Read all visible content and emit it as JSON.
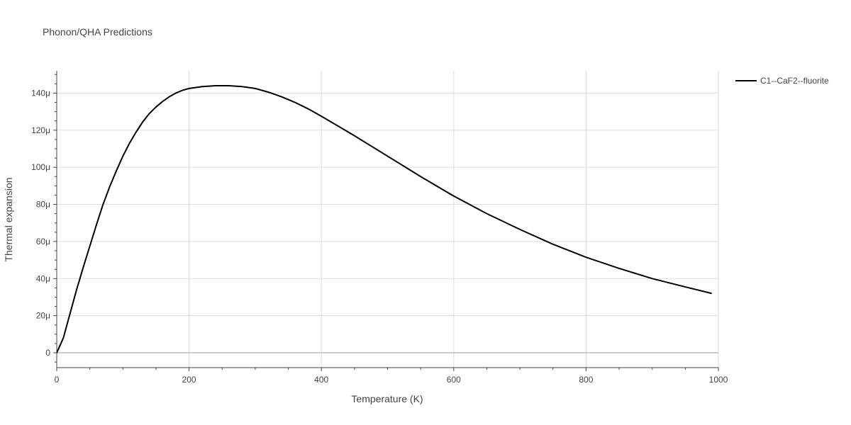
{
  "chart_data": {
    "type": "line",
    "title": "Phonon/QHA Predictions",
    "xlabel": "Temperature (K)",
    "ylabel": "Thermal expansion",
    "xlim": [
      0,
      1000
    ],
    "ylim": [
      -8,
      152
    ],
    "x_ticks": [
      0,
      200,
      400,
      600,
      800,
      1000
    ],
    "x_tick_labels": [
      "0",
      "200",
      "400",
      "600",
      "800",
      "1000"
    ],
    "y_ticks": [
      0,
      20,
      40,
      60,
      80,
      100,
      120,
      140
    ],
    "y_tick_labels": [
      "0",
      "20μ",
      "40μ",
      "60μ",
      "80μ",
      "100μ",
      "120μ",
      "140μ"
    ],
    "grid": true,
    "legend_position": "top-right",
    "series": [
      {
        "name": "C1--CaF2--fluorite",
        "color": "#000000",
        "x": [
          0,
          10,
          20,
          30,
          40,
          50,
          60,
          70,
          80,
          90,
          100,
          110,
          120,
          130,
          140,
          150,
          160,
          170,
          180,
          190,
          200,
          220,
          240,
          260,
          280,
          300,
          320,
          340,
          360,
          380,
          400,
          450,
          500,
          550,
          600,
          650,
          700,
          750,
          800,
          850,
          900,
          950,
          990
        ],
        "y": [
          0,
          8,
          21,
          34,
          46,
          57.5,
          69,
          80,
          89.5,
          98,
          106,
          113,
          119,
          124.5,
          129,
          132.5,
          135.5,
          138,
          140,
          141.5,
          142.5,
          143.5,
          144,
          144,
          143.5,
          142.5,
          140.5,
          138,
          135,
          131.5,
          127.5,
          117,
          106,
          95,
          84.5,
          75,
          66.5,
          58.5,
          51.5,
          45.5,
          40,
          35.5,
          32
        ]
      }
    ]
  }
}
